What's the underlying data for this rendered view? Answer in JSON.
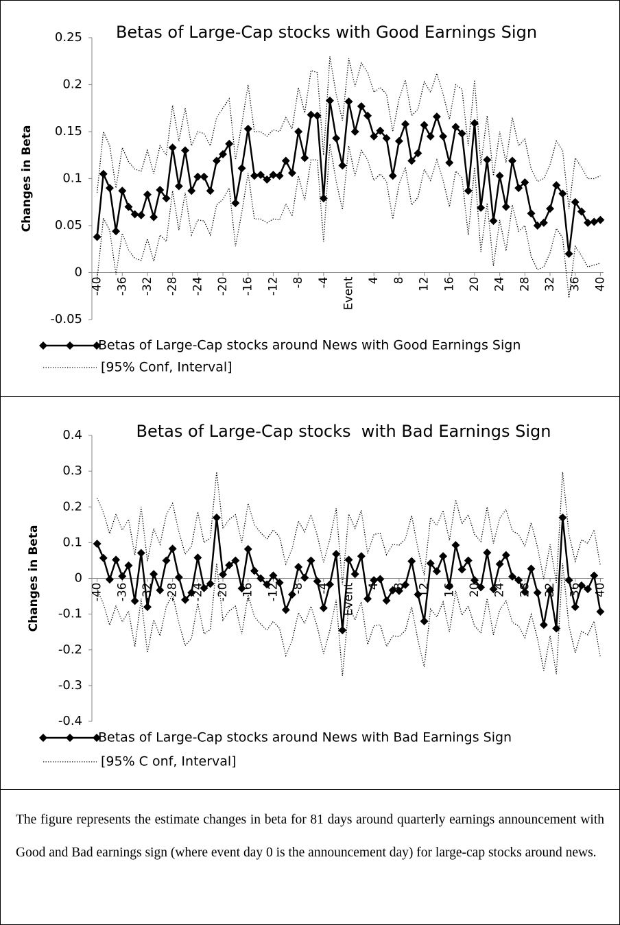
{
  "chart_data": [
    {
      "type": "line",
      "title": "Betas of Large-Cap stocks with Good Earnings Sign",
      "ylabel": "Changes in Beta",
      "xlabel": "Event",
      "x": [
        -40,
        -39,
        -38,
        -37,
        -36,
        -35,
        -34,
        -33,
        -32,
        -31,
        -30,
        -29,
        -28,
        -27,
        -26,
        -25,
        -24,
        -23,
        -22,
        -21,
        -20,
        -19,
        -18,
        -17,
        -16,
        -15,
        -14,
        -13,
        -12,
        -11,
        -10,
        -9,
        -8,
        -7,
        -6,
        -5,
        -4,
        -3,
        -2,
        -1,
        0,
        1,
        2,
        3,
        4,
        5,
        6,
        7,
        8,
        9,
        10,
        11,
        12,
        13,
        14,
        15,
        16,
        17,
        18,
        19,
        20,
        21,
        22,
        23,
        24,
        25,
        26,
        27,
        28,
        29,
        30,
        31,
        32,
        33,
        34,
        35,
        36,
        37,
        38,
        39,
        40
      ],
      "xlim": [
        -40.5,
        40.5
      ],
      "xticks": [
        -40,
        -36,
        -32,
        -28,
        -24,
        -20,
        -16,
        -12,
        -8,
        -4,
        4,
        8,
        12,
        16,
        20,
        24,
        28,
        32,
        36,
        40
      ],
      "ylim": [
        -0.05,
        0.25
      ],
      "yticks": [
        -0.05,
        0,
        0.05,
        0.1,
        0.15,
        0.2,
        0.25
      ],
      "series": [
        {
          "name": "Betas of Large-Cap stocks around News with Good Earnings Sign",
          "color": "#000000",
          "style": "solid",
          "marker": "diamond",
          "values": [
            0.038,
            0.105,
            0.09,
            0.044,
            0.087,
            0.07,
            0.062,
            0.061,
            0.083,
            0.059,
            0.088,
            0.079,
            0.133,
            0.092,
            0.13,
            0.087,
            0.102,
            0.102,
            0.087,
            0.119,
            0.126,
            0.137,
            0.074,
            0.111,
            0.153,
            0.103,
            0.104,
            0.099,
            0.104,
            0.103,
            0.119,
            0.106,
            0.15,
            0.122,
            0.168,
            0.167,
            0.079,
            0.183,
            0.143,
            0.114,
            0.182,
            0.15,
            0.177,
            0.167,
            0.145,
            0.151,
            0.143,
            0.103,
            0.14,
            0.158,
            0.119,
            0.127,
            0.157,
            0.145,
            0.166,
            0.145,
            0.117,
            0.155,
            0.148,
            0.087,
            0.159,
            0.069,
            0.12,
            0.055,
            0.103,
            0.07,
            0.119,
            0.09,
            0.096,
            0.063,
            0.05,
            0.053,
            0.068,
            0.093,
            0.084,
            0.02,
            0.075,
            0.065,
            0.053,
            0.054,
            0.056
          ]
        },
        {
          "name": "[95% Conf, Interval]",
          "color": "#000000",
          "style": "dotted",
          "values": [
            0.085,
            0.15,
            0.135,
            0.09,
            0.133,
            0.118,
            0.11,
            0.108,
            0.13,
            0.105,
            0.135,
            0.125,
            0.178,
            0.14,
            0.175,
            0.135,
            0.15,
            0.148,
            0.135,
            0.165,
            0.175,
            0.185,
            0.12,
            0.158,
            0.2,
            0.15,
            0.15,
            0.145,
            0.152,
            0.15,
            0.165,
            0.153,
            0.197,
            0.17,
            0.215,
            0.213,
            0.125,
            0.23,
            0.19,
            0.162,
            0.228,
            0.198,
            0.223,
            0.213,
            0.192,
            0.197,
            0.19,
            0.15,
            0.185,
            0.205,
            0.167,
            0.174,
            0.203,
            0.192,
            0.212,
            0.19,
            0.163,
            0.2,
            0.195,
            0.135,
            0.205,
            0.115,
            0.167,
            0.103,
            0.15,
            0.117,
            0.165,
            0.135,
            0.142,
            0.11,
            0.097,
            0.1,
            0.115,
            0.14,
            0.13,
            0.068,
            0.122,
            0.112,
            0.1,
            0.1,
            0.103
          ]
        },
        {
          "color": "#000000",
          "style": "dotted",
          "values": [
            -0.008,
            0.058,
            0.045,
            -0.002,
            0.042,
            0.024,
            0.015,
            0.013,
            0.036,
            0.012,
            0.04,
            0.033,
            0.087,
            0.045,
            0.085,
            0.04,
            0.056,
            0.055,
            0.04,
            0.072,
            0.078,
            0.09,
            0.028,
            0.064,
            0.106,
            0.057,
            0.057,
            0.053,
            0.057,
            0.056,
            0.073,
            0.06,
            0.103,
            0.077,
            0.12,
            0.12,
            0.033,
            0.137,
            0.097,
            0.067,
            0.135,
            0.103,
            0.13,
            0.12,
            0.098,
            0.105,
            0.097,
            0.057,
            0.094,
            0.112,
            0.072,
            0.08,
            0.11,
            0.098,
            0.12,
            0.098,
            0.07,
            0.108,
            0.101,
            0.04,
            0.112,
            0.022,
            0.074,
            0.007,
            0.056,
            0.023,
            0.072,
            0.044,
            0.05,
            0.017,
            0.003,
            0.006,
            0.021,
            0.047,
            0.037,
            -0.027,
            0.028,
            0.018,
            0.006,
            0.008,
            0.01
          ]
        }
      ]
    },
    {
      "type": "line",
      "title": "Betas of Large-Cap stocks  with Bad Earnings Sign",
      "ylabel": "Changes in Beta",
      "xlabel": "Event",
      "x": [
        -40,
        -39,
        -38,
        -37,
        -36,
        -35,
        -34,
        -33,
        -32,
        -31,
        -30,
        -29,
        -28,
        -27,
        -26,
        -25,
        -24,
        -23,
        -22,
        -21,
        -20,
        -19,
        -18,
        -17,
        -16,
        -15,
        -14,
        -13,
        -12,
        -11,
        -10,
        -9,
        -8,
        -7,
        -6,
        -5,
        -4,
        -3,
        -2,
        -1,
        0,
        1,
        2,
        3,
        4,
        5,
        6,
        7,
        8,
        9,
        10,
        11,
        12,
        13,
        14,
        15,
        16,
        17,
        18,
        19,
        20,
        21,
        22,
        23,
        24,
        25,
        26,
        27,
        28,
        29,
        30,
        31,
        32,
        33,
        34,
        35,
        36,
        37,
        38,
        39,
        40
      ],
      "xlim": [
        -40.5,
        40.5
      ],
      "xticks": [
        -40,
        -36,
        -32,
        -28,
        -24,
        -20,
        -16,
        -12,
        -8,
        -4,
        4,
        8,
        12,
        16,
        20,
        24,
        28,
        32,
        36,
        40
      ],
      "ylim": [
        -0.4,
        0.4
      ],
      "yticks": [
        -0.4,
        -0.3,
        -0.2,
        -0.1,
        0,
        0.1,
        0.2,
        0.3,
        0.4
      ],
      "series": [
        {
          "name": "Betas of Large-Cap stocks around News with Bad Earnings Sign",
          "color": "#000000",
          "style": "solid",
          "marker": "diamond",
          "values": [
            0.097,
            0.057,
            -0.003,
            0.052,
            0.006,
            0.036,
            -0.063,
            0.071,
            -0.08,
            0.012,
            -0.033,
            0.05,
            0.083,
            0.003,
            -0.06,
            -0.04,
            0.058,
            -0.027,
            -0.015,
            0.17,
            0.011,
            0.037,
            0.05,
            -0.028,
            0.082,
            0.021,
            0,
            -0.017,
            0.008,
            -0.012,
            -0.088,
            -0.045,
            0.032,
            0.002,
            0.05,
            -0.008,
            -0.083,
            -0.017,
            0.068,
            -0.145,
            0.052,
            0.012,
            0.062,
            -0.057,
            -0.005,
            -0.002,
            -0.062,
            -0.033,
            -0.035,
            -0.018,
            0.048,
            -0.045,
            -0.12,
            0.042,
            0.02,
            0.062,
            -0.022,
            0.093,
            0.025,
            0.05,
            -0.005,
            -0.025,
            0.072,
            -0.03,
            0.04,
            0.065,
            0.005,
            -0.005,
            -0.038,
            0.027,
            -0.04,
            -0.13,
            -0.033,
            -0.14,
            0.17,
            -0.005,
            -0.08,
            -0.02,
            -0.03,
            0.008,
            -0.093
          ]
        },
        {
          "name": "[95% C onf, Interval]",
          "color": "#000000",
          "style": "dotted",
          "values": [
            0.225,
            0.185,
            0.125,
            0.18,
            0.135,
            0.165,
            0.065,
            0.2,
            0.048,
            0.14,
            0.095,
            0.178,
            0.21,
            0.13,
            0.068,
            0.09,
            0.186,
            0.1,
            0.113,
            0.298,
            0.14,
            0.165,
            0.178,
            0.1,
            0.21,
            0.15,
            0.128,
            0.11,
            0.136,
            0.116,
            0.04,
            0.083,
            0.16,
            0.13,
            0.178,
            0.12,
            0.045,
            0.11,
            0.196,
            -0.017,
            0.18,
            0.14,
            0.19,
            0.07,
            0.123,
            0.126,
            0.066,
            0.095,
            0.093,
            0.11,
            0.176,
            0.083,
            0.008,
            0.17,
            0.148,
            0.19,
            0.106,
            0.22,
            0.153,
            0.178,
            0.123,
            0.103,
            0.2,
            0.098,
            0.168,
            0.193,
            0.133,
            0.123,
            0.09,
            0.155,
            0.088,
            -0.002,
            0.095,
            -0.012,
            0.298,
            0.123,
            0.048,
            0.108,
            0.098,
            0.136,
            0.035
          ]
        },
        {
          "color": "#000000",
          "style": "dotted",
          "values": [
            -0.031,
            -0.071,
            -0.131,
            -0.076,
            -0.122,
            -0.092,
            -0.191,
            -0.057,
            -0.208,
            -0.116,
            -0.161,
            -0.078,
            -0.045,
            -0.125,
            -0.188,
            -0.168,
            -0.07,
            -0.155,
            -0.143,
            0.042,
            -0.117,
            -0.091,
            -0.078,
            -0.156,
            -0.046,
            -0.107,
            -0.128,
            -0.145,
            -0.12,
            -0.14,
            -0.216,
            -0.173,
            -0.096,
            -0.126,
            -0.078,
            -0.136,
            -0.211,
            -0.145,
            -0.06,
            -0.273,
            -0.076,
            -0.116,
            -0.066,
            -0.185,
            -0.133,
            -0.13,
            -0.19,
            -0.161,
            -0.163,
            -0.146,
            -0.08,
            -0.173,
            -0.248,
            -0.086,
            -0.108,
            -0.066,
            -0.15,
            -0.035,
            -0.103,
            -0.078,
            -0.133,
            -0.153,
            -0.056,
            -0.158,
            -0.088,
            -0.063,
            -0.123,
            -0.133,
            -0.166,
            -0.101,
            -0.168,
            -0.258,
            -0.161,
            -0.268,
            0.042,
            -0.133,
            -0.208,
            -0.148,
            -0.158,
            -0.12,
            -0.221
          ]
        }
      ]
    }
  ],
  "caption": "The figure represents the estimate changes in beta for 81 days around quarterly earnings announcement with Good and Bad earnings sign (where event day 0 is the announcement day) for large-cap stocks around news."
}
